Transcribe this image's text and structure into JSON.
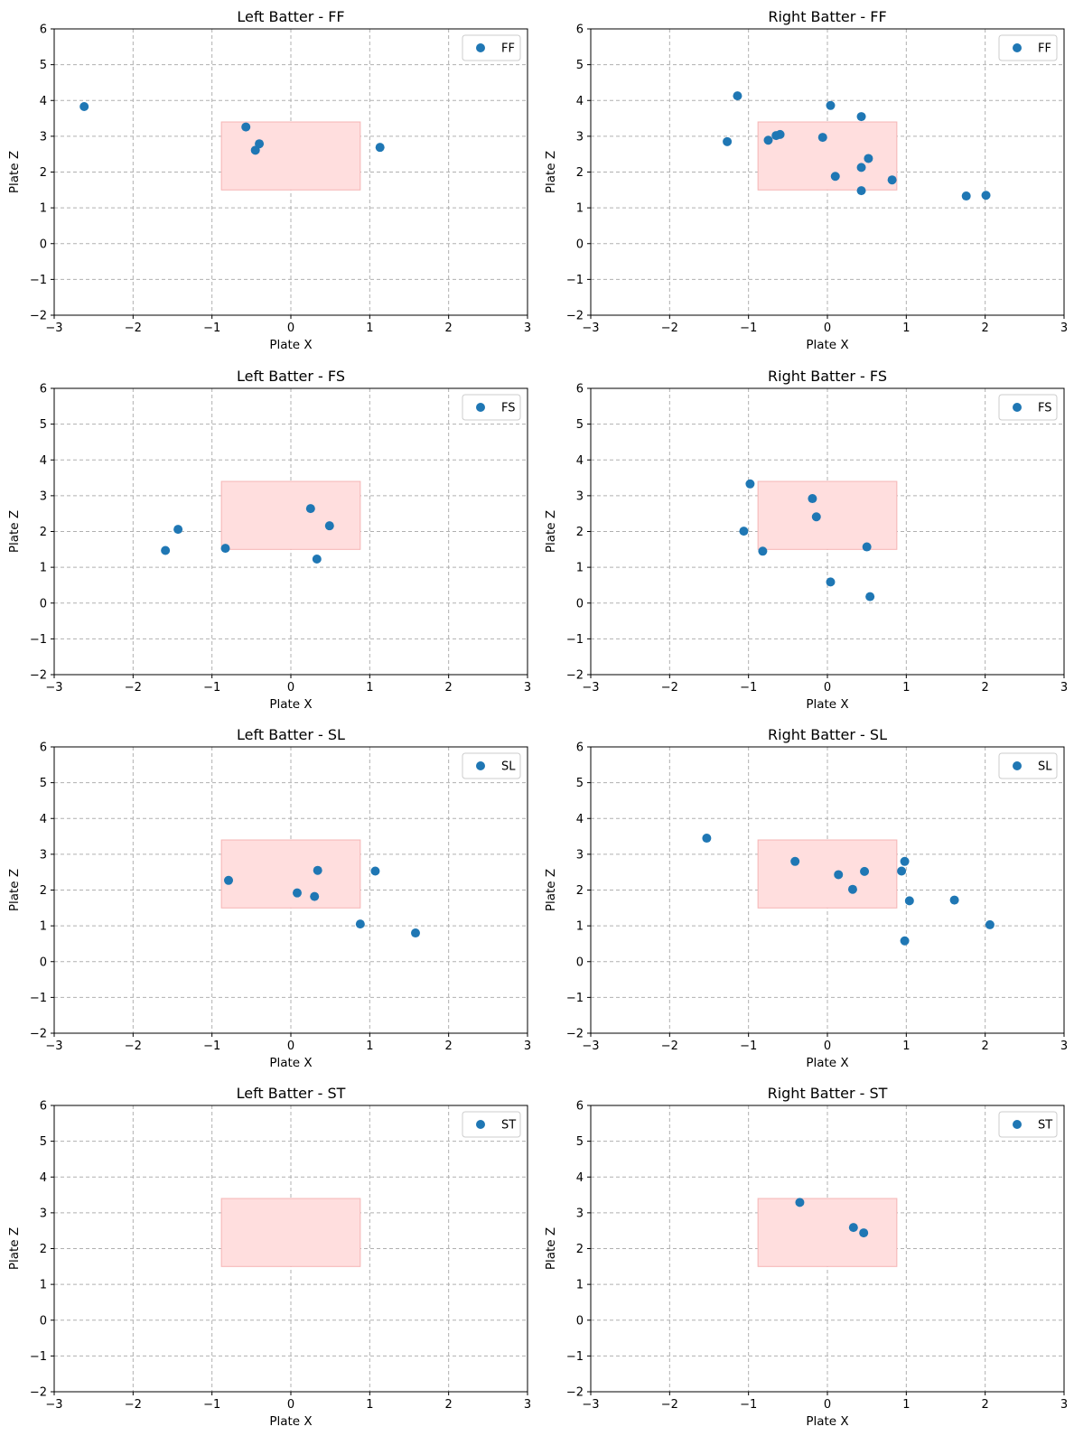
{
  "figure": {
    "background": "#ffffff"
  },
  "chart_data": [
    {
      "type": "scatter",
      "title": "Left Batter - FF",
      "xlabel": "Plate X",
      "ylabel": "Plate Z",
      "xlim": [
        -3,
        3
      ],
      "ylim": [
        -2,
        6
      ],
      "xticks": [
        -3,
        -2,
        -1,
        0,
        1,
        2,
        3
      ],
      "yticks": [
        -2,
        -1,
        0,
        1,
        2,
        3,
        4,
        5,
        6
      ],
      "grid": true,
      "legend": "upper-right",
      "strike_zone": {
        "x": [
          -0.88,
          0.88
        ],
        "z": [
          1.5,
          3.4
        ],
        "color": "#ffdede"
      },
      "series": [
        {
          "name": "FF",
          "color": "#1f77b4",
          "points": [
            [
              -2.62,
              3.83
            ],
            [
              -0.57,
              3.26
            ],
            [
              -0.4,
              2.79
            ],
            [
              -0.45,
              2.61
            ],
            [
              1.13,
              2.69
            ]
          ]
        }
      ]
    },
    {
      "type": "scatter",
      "title": "Right Batter - FF",
      "xlabel": "Plate X",
      "ylabel": "Plate Z",
      "xlim": [
        -3,
        3
      ],
      "ylim": [
        -2,
        6
      ],
      "xticks": [
        -3,
        -2,
        -1,
        0,
        1,
        2,
        3
      ],
      "yticks": [
        -2,
        -1,
        0,
        1,
        2,
        3,
        4,
        5,
        6
      ],
      "grid": true,
      "legend": "upper-right",
      "strike_zone": {
        "x": [
          -0.88,
          0.88
        ],
        "z": [
          1.5,
          3.4
        ],
        "color": "#ffdede"
      },
      "series": [
        {
          "name": "FF",
          "color": "#1f77b4",
          "points": [
            [
              -1.14,
              4.13
            ],
            [
              0.04,
              3.86
            ],
            [
              0.43,
              3.55
            ],
            [
              -1.27,
              2.85
            ],
            [
              -0.75,
              2.89
            ],
            [
              -0.65,
              3.02
            ],
            [
              -0.6,
              3.05
            ],
            [
              -0.06,
              2.97
            ],
            [
              0.52,
              2.38
            ],
            [
              0.43,
              2.13
            ],
            [
              0.1,
              1.88
            ],
            [
              0.82,
              1.78
            ],
            [
              0.43,
              1.48
            ],
            [
              1.76,
              1.33
            ],
            [
              2.01,
              1.35
            ]
          ]
        }
      ]
    },
    {
      "type": "scatter",
      "title": "Left Batter - FS",
      "xlabel": "Plate X",
      "ylabel": "Plate Z",
      "xlim": [
        -3,
        3
      ],
      "ylim": [
        -2,
        6
      ],
      "xticks": [
        -3,
        -2,
        -1,
        0,
        1,
        2,
        3
      ],
      "yticks": [
        -2,
        -1,
        0,
        1,
        2,
        3,
        4,
        5,
        6
      ],
      "grid": true,
      "legend": "upper-right",
      "strike_zone": {
        "x": [
          -0.88,
          0.88
        ],
        "z": [
          1.5,
          3.4
        ],
        "color": "#ffdede"
      },
      "series": [
        {
          "name": "FS",
          "color": "#1f77b4",
          "points": [
            [
              -1.59,
              1.47
            ],
            [
              -1.43,
              2.06
            ],
            [
              -0.83,
              1.53
            ],
            [
              0.25,
              2.64
            ],
            [
              0.49,
              2.16
            ],
            [
              0.33,
              1.23
            ]
          ]
        }
      ]
    },
    {
      "type": "scatter",
      "title": "Right Batter - FS",
      "xlabel": "Plate X",
      "ylabel": "Plate Z",
      "xlim": [
        -3,
        3
      ],
      "ylim": [
        -2,
        6
      ],
      "xticks": [
        -3,
        -2,
        -1,
        0,
        1,
        2,
        3
      ],
      "yticks": [
        -2,
        -1,
        0,
        1,
        2,
        3,
        4,
        5,
        6
      ],
      "grid": true,
      "legend": "upper-right",
      "strike_zone": {
        "x": [
          -0.88,
          0.88
        ],
        "z": [
          1.5,
          3.4
        ],
        "color": "#ffdede"
      },
      "series": [
        {
          "name": "FS",
          "color": "#1f77b4",
          "points": [
            [
              -0.98,
              3.33
            ],
            [
              -0.19,
              2.92
            ],
            [
              -0.14,
              2.41
            ],
            [
              -1.06,
              2.01
            ],
            [
              -0.82,
              1.45
            ],
            [
              0.5,
              1.57
            ],
            [
              0.04,
              0.59
            ],
            [
              0.54,
              0.18
            ]
          ]
        }
      ]
    },
    {
      "type": "scatter",
      "title": "Left Batter - SL",
      "xlabel": "Plate X",
      "ylabel": "Plate Z",
      "xlim": [
        -3,
        3
      ],
      "ylim": [
        -2,
        6
      ],
      "xticks": [
        -3,
        -2,
        -1,
        0,
        1,
        2,
        3
      ],
      "yticks": [
        -2,
        -1,
        0,
        1,
        2,
        3,
        4,
        5,
        6
      ],
      "grid": true,
      "legend": "upper-right",
      "strike_zone": {
        "x": [
          -0.88,
          0.88
        ],
        "z": [
          1.5,
          3.4
        ],
        "color": "#ffdede"
      },
      "series": [
        {
          "name": "SL",
          "color": "#1f77b4",
          "points": [
            [
              -0.79,
              2.27
            ],
            [
              0.34,
              2.55
            ],
            [
              1.07,
              2.53
            ],
            [
              0.08,
              1.92
            ],
            [
              0.3,
              1.82
            ],
            [
              0.88,
              1.05
            ],
            [
              1.58,
              0.8
            ]
          ]
        }
      ]
    },
    {
      "type": "scatter",
      "title": "Right Batter - SL",
      "xlabel": "Plate X",
      "ylabel": "Plate Z",
      "xlim": [
        -3,
        3
      ],
      "ylim": [
        -2,
        6
      ],
      "xticks": [
        -3,
        -2,
        -1,
        0,
        1,
        2,
        3
      ],
      "yticks": [
        -2,
        -1,
        0,
        1,
        2,
        3,
        4,
        5,
        6
      ],
      "grid": true,
      "legend": "upper-right",
      "strike_zone": {
        "x": [
          -0.88,
          0.88
        ],
        "z": [
          1.5,
          3.4
        ],
        "color": "#ffdede"
      },
      "series": [
        {
          "name": "SL",
          "color": "#1f77b4",
          "points": [
            [
              -1.53,
              3.45
            ],
            [
              -0.41,
              2.8
            ],
            [
              0.14,
              2.43
            ],
            [
              0.47,
              2.52
            ],
            [
              0.32,
              2.02
            ],
            [
              0.94,
              2.53
            ],
            [
              0.98,
              2.8
            ],
            [
              1.04,
              1.7
            ],
            [
              1.61,
              1.72
            ],
            [
              2.06,
              1.03
            ],
            [
              0.98,
              0.58
            ]
          ]
        }
      ]
    },
    {
      "type": "scatter",
      "title": "Left Batter - ST",
      "xlabel": "Plate X",
      "ylabel": "Plate Z",
      "xlim": [
        -3,
        3
      ],
      "ylim": [
        -2,
        6
      ],
      "xticks": [
        -3,
        -2,
        -1,
        0,
        1,
        2,
        3
      ],
      "yticks": [
        -2,
        -1,
        0,
        1,
        2,
        3,
        4,
        5,
        6
      ],
      "grid": true,
      "legend": "upper-right",
      "strike_zone": {
        "x": [
          -0.88,
          0.88
        ],
        "z": [
          1.5,
          3.4
        ],
        "color": "#ffdede"
      },
      "series": [
        {
          "name": "ST",
          "color": "#1f77b4",
          "points": []
        }
      ]
    },
    {
      "type": "scatter",
      "title": "Right Batter - ST",
      "xlabel": "Plate X",
      "ylabel": "Plate Z",
      "xlim": [
        -3,
        3
      ],
      "ylim": [
        -2,
        6
      ],
      "xticks": [
        -3,
        -2,
        -1,
        0,
        1,
        2,
        3
      ],
      "yticks": [
        -2,
        -1,
        0,
        1,
        2,
        3,
        4,
        5,
        6
      ],
      "grid": true,
      "legend": "upper-right",
      "strike_zone": {
        "x": [
          -0.88,
          0.88
        ],
        "z": [
          1.5,
          3.4
        ],
        "color": "#ffdede"
      },
      "series": [
        {
          "name": "ST",
          "color": "#1f77b4",
          "points": [
            [
              -0.35,
              3.29
            ],
            [
              0.33,
              2.59
            ],
            [
              0.46,
              2.44
            ]
          ]
        }
      ]
    }
  ]
}
